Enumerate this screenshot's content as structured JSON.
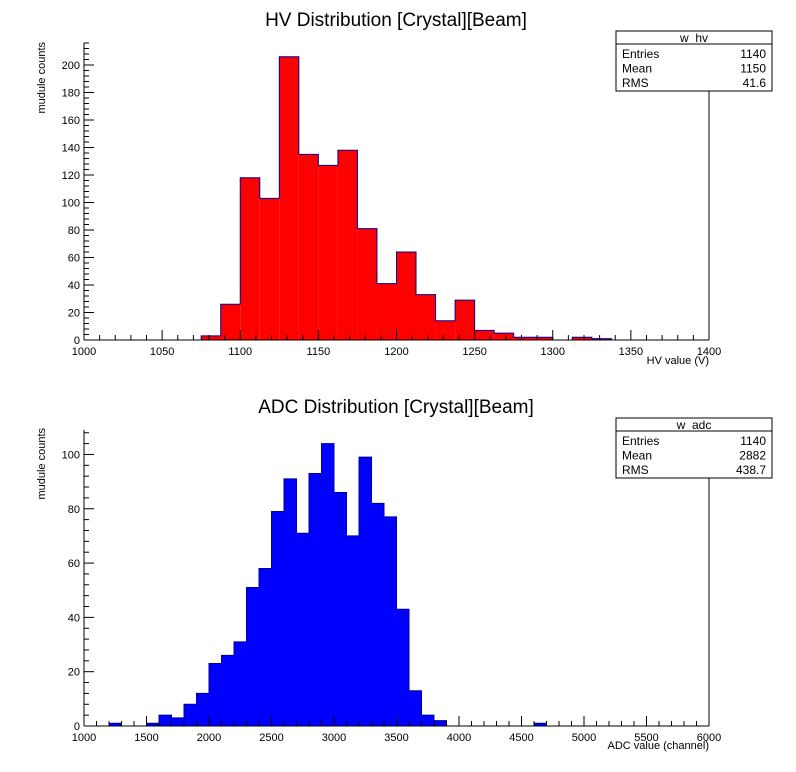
{
  "chart_data": [
    {
      "type": "bar",
      "title": "HV Distribution [Crystal][Beam]",
      "xlabel": "HV value (V)",
      "ylabel": "mudule counts",
      "xlim": [
        1000,
        1400
      ],
      "ylim": [
        0,
        216
      ],
      "x_ticks": [
        1000,
        1050,
        1100,
        1150,
        1200,
        1250,
        1300,
        1350,
        1400
      ],
      "y_ticks": [
        0,
        20,
        40,
        60,
        80,
        100,
        120,
        140,
        160,
        180,
        200
      ],
      "bin_start": 1000,
      "bin_width": 12.5,
      "values": [
        0,
        0,
        0,
        0,
        0,
        0,
        3,
        26,
        118,
        103,
        206,
        135,
        127,
        138,
        81,
        41,
        64,
        33,
        14,
        29,
        7,
        5,
        2,
        2,
        0,
        2,
        1,
        0,
        0,
        0,
        0,
        0
      ],
      "fill_color": "#ff0000",
      "line_color": "#000099",
      "stats": {
        "name": "w_hv",
        "rows": [
          {
            "label": "Entries",
            "value": "1140"
          },
          {
            "label": "Mean",
            "value": "1150"
          },
          {
            "label": "RMS",
            "value": "41.6"
          }
        ]
      }
    },
    {
      "type": "bar",
      "title": "ADC Distribution [Crystal][Beam]",
      "xlabel": "ADC value (channel)",
      "ylabel": "mudule counts",
      "xlim": [
        1000,
        6000
      ],
      "ylim": [
        0,
        109
      ],
      "x_ticks": [
        1000,
        1500,
        2000,
        2500,
        3000,
        3500,
        4000,
        4500,
        5000,
        5500,
        6000
      ],
      "y_ticks": [
        0,
        20,
        40,
        60,
        80,
        100
      ],
      "bin_start": 1000,
      "bin_width": 100,
      "values": [
        0,
        0,
        1,
        0,
        0,
        1,
        4,
        3,
        8,
        12,
        23,
        26,
        31,
        51,
        58,
        79,
        91,
        71,
        93,
        104,
        86,
        70,
        99,
        82,
        77,
        43,
        13,
        4,
        2,
        0,
        0,
        0,
        0,
        0,
        0,
        0,
        1,
        0,
        0,
        0,
        0,
        0,
        0,
        0,
        0,
        0,
        0,
        0,
        0,
        0
      ],
      "fill_color": "#0000ff",
      "line_color": "#000099",
      "stats": {
        "name": "w_adc",
        "rows": [
          {
            "label": "Entries",
            "value": "1140"
          },
          {
            "label": "Mean",
            "value": "2882"
          },
          {
            "label": "RMS",
            "value": "438.7"
          }
        ]
      }
    }
  ]
}
